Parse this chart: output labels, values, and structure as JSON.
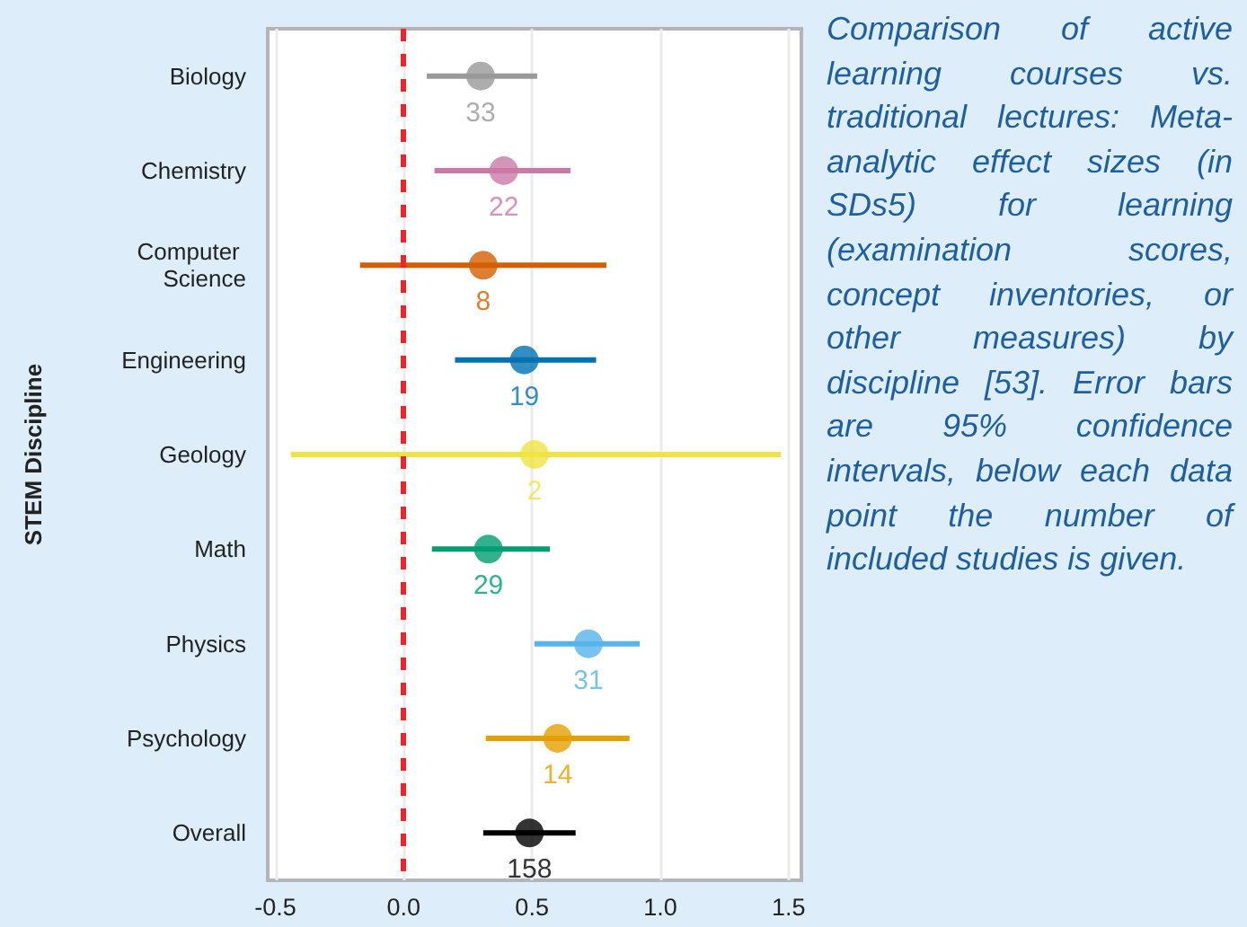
{
  "chart_data": {
    "type": "scatter",
    "ylabel": "STEM Discipline",
    "categories": [
      "Biology",
      "Chemistry",
      "Computer Science",
      "Engineering",
      "Geology",
      "Math",
      "Physics",
      "Psychology",
      "Overall"
    ],
    "values": [
      0.3,
      0.39,
      0.31,
      0.47,
      0.51,
      0.33,
      0.72,
      0.6,
      0.49
    ],
    "errors": [
      [
        0.09,
        0.52
      ],
      [
        0.12,
        0.65
      ],
      [
        -0.17,
        0.79
      ],
      [
        0.2,
        0.75
      ],
      [
        -0.44,
        1.47
      ],
      [
        0.11,
        0.57
      ],
      [
        0.51,
        0.92
      ],
      [
        0.32,
        0.88
      ],
      [
        0.31,
        0.67
      ]
    ],
    "colors": [
      "#999999",
      "#cc79a7",
      "#d55e00",
      "#0072b2",
      "#f0e442",
      "#009e73",
      "#56b4e9",
      "#e69f00",
      "#000000"
    ],
    "orientation": "horizontal",
    "xlim": [
      -0.53,
      1.55
    ],
    "xticks": [
      -0.5,
      {
        "value": 0,
        "label": "0.0"
      },
      0.5,
      {
        "value": 1,
        "label": "1.0"
      },
      1.5
    ],
    "grid": "x",
    "marker": "circle",
    "ref_lines": [
      {
        "axis": "x",
        "value": 0,
        "color": "#e8262b",
        "line_style": "dashed"
      }
    ],
    "annotations": [
      {
        "text": "33",
        "x": 0.3,
        "y": "Biology"
      },
      {
        "text": "22",
        "x": 0.39,
        "y": "Chemistry"
      },
      {
        "text": "8",
        "x": 0.31,
        "y": "Computer Science"
      },
      {
        "text": "19",
        "x": 0.47,
        "y": "Engineering"
      },
      {
        "text": "2",
        "x": 0.51,
        "y": "Geology"
      },
      {
        "text": "29",
        "x": 0.33,
        "y": "Math"
      },
      {
        "text": "31",
        "x": 0.72,
        "y": "Physics"
      },
      {
        "text": "14",
        "x": 0.6,
        "y": "Psychology"
      },
      {
        "text": "158",
        "x": 0.49,
        "y": "Overall"
      },
      "Comparison of active learning courses vs. traditional lectures: Meta-analytic effect sizes (in SDs5) for learning (examination scores, concept inventories, or other measures) by discipline [53]. Error bars are 95% confidence intervals, below each data point the number of included studies is given."
    ]
  }
}
